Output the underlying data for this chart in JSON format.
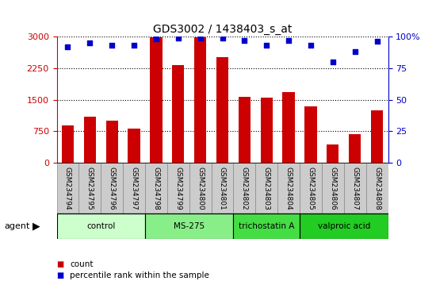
{
  "title": "GDS3002 / 1438403_s_at",
  "samples": [
    "GSM234794",
    "GSM234795",
    "GSM234796",
    "GSM234797",
    "GSM234798",
    "GSM234799",
    "GSM234800",
    "GSM234801",
    "GSM234802",
    "GSM234803",
    "GSM234804",
    "GSM234805",
    "GSM234806",
    "GSM234807",
    "GSM234808"
  ],
  "counts": [
    900,
    1100,
    1000,
    820,
    2980,
    2320,
    2980,
    2520,
    1570,
    1550,
    1680,
    1350,
    430,
    680,
    1250
  ],
  "percentiles": [
    92,
    95,
    93,
    93,
    98,
    99,
    99,
    99,
    97,
    93,
    97,
    93,
    80,
    88,
    96
  ],
  "ylim_left": [
    0,
    3000
  ],
  "ylim_right": [
    0,
    100
  ],
  "yticks_left": [
    0,
    750,
    1500,
    2250,
    3000
  ],
  "ytick_labels_left": [
    "0",
    "750",
    "1500",
    "2250",
    "3000"
  ],
  "yticks_right": [
    0,
    25,
    50,
    75,
    100
  ],
  "ytick_labels_right": [
    "0",
    "25",
    "50",
    "75",
    "100%"
  ],
  "bar_color": "#cc0000",
  "dot_color": "#0000cc",
  "groups": [
    {
      "label": "control",
      "start": 0,
      "end": 3,
      "color": "#ccffcc"
    },
    {
      "label": "MS-275",
      "start": 4,
      "end": 7,
      "color": "#88ee88"
    },
    {
      "label": "trichostatin A",
      "start": 8,
      "end": 10,
      "color": "#44dd44"
    },
    {
      "label": "valproic acid",
      "start": 11,
      "end": 14,
      "color": "#22cc22"
    }
  ],
  "bg_color": "#ffffff",
  "tick_label_bg": "#cccccc",
  "bar_width": 0.55
}
